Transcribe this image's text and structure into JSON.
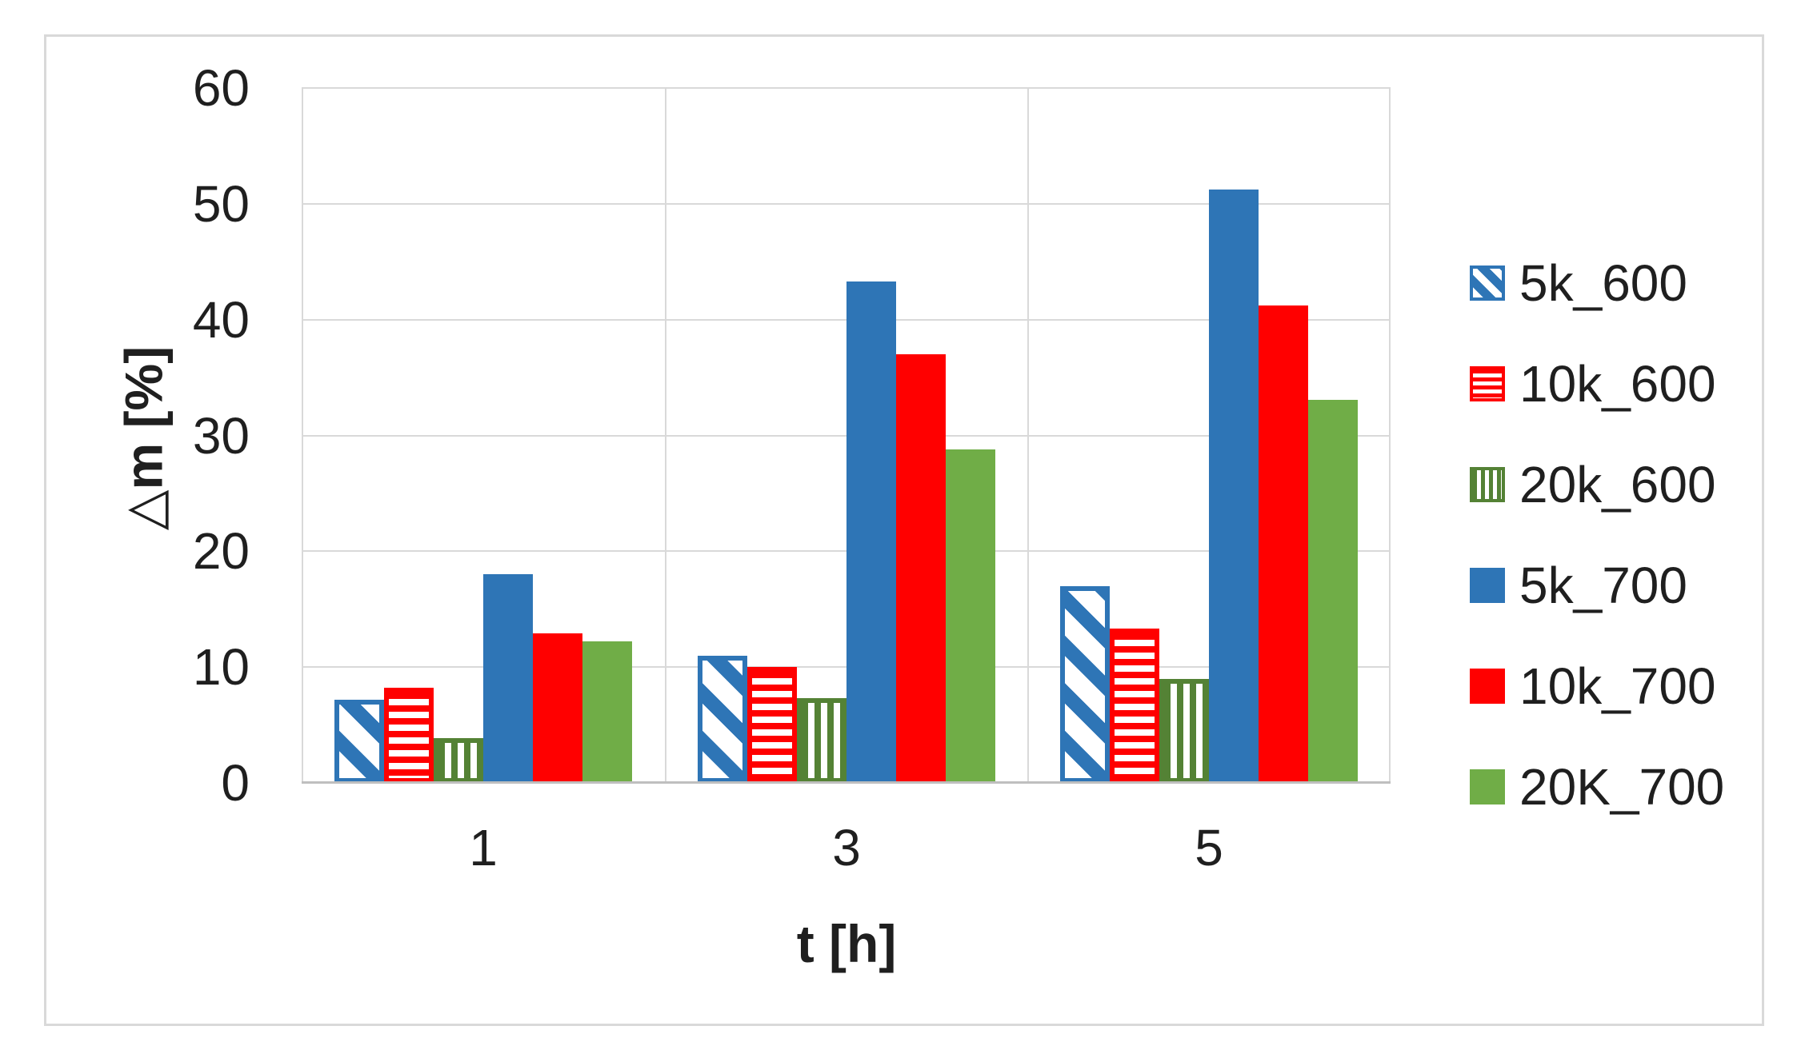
{
  "chart_data": {
    "type": "bar",
    "title": "",
    "xlabel": "t [h]",
    "ylabel": "△m [%]",
    "categories": [
      "1",
      "3",
      "5"
    ],
    "ylim": [
      0,
      60
    ],
    "ytick_step": 10,
    "yticks": [
      "0",
      "10",
      "20",
      "30",
      "40",
      "50",
      "60"
    ],
    "grid": true,
    "legend_position": "right",
    "series": [
      {
        "name": "5k_600",
        "color": "#2e75b6",
        "pattern": "diagonal",
        "values": [
          7.2,
          11.0,
          17.0
        ]
      },
      {
        "name": "10k_600",
        "color": "#ff0000",
        "pattern": "horizontal",
        "values": [
          8.2,
          10.0,
          13.3
        ]
      },
      {
        "name": "20k_600",
        "color": "#548235",
        "pattern": "vertical",
        "values": [
          3.9,
          7.3,
          9.0
        ]
      },
      {
        "name": "5k_700",
        "color": "#2e75b6",
        "pattern": "solid",
        "values": [
          18.0,
          43.3,
          51.2
        ]
      },
      {
        "name": "10k_700",
        "color": "#ff0000",
        "pattern": "solid",
        "values": [
          12.9,
          37.0,
          41.2
        ]
      },
      {
        "name": "20K_700",
        "color": "#70ad47",
        "pattern": "solid",
        "values": [
          12.2,
          28.8,
          33.1
        ]
      }
    ]
  },
  "colors": {
    "gridline": "#d9d9d9",
    "axis_line": "#bfbfbf",
    "figure_border": "#d9d9d9",
    "text": "#1f1f1f",
    "background": "#ffffff"
  }
}
